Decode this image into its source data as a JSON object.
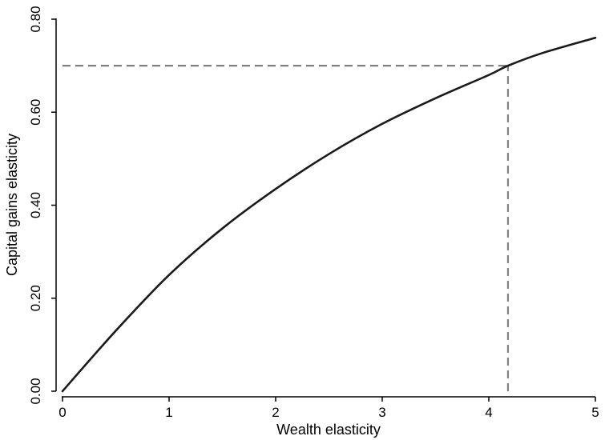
{
  "chart_data": {
    "type": "line",
    "xlabel": "Wealth elasticity",
    "ylabel": "Capital gains elasticity",
    "xlim": [
      0,
      5
    ],
    "ylim": [
      0,
      0.8
    ],
    "x_ticks": [
      "0",
      "1",
      "2",
      "3",
      "4",
      "5"
    ],
    "y_ticks": [
      "0.00",
      "0.20",
      "0.40",
      "0.60",
      "0.80"
    ],
    "grid": false,
    "legend": "none",
    "series": [
      {
        "color": "#1a1a1a",
        "x": [
          0,
          0.5,
          1,
          1.5,
          2,
          2.5,
          3,
          3.5,
          4,
          4.18,
          4.5,
          5
        ],
        "y": [
          0,
          0.13,
          0.25,
          0.35,
          0.435,
          0.51,
          0.575,
          0.63,
          0.68,
          0.7,
          0.727,
          0.76
        ]
      }
    ],
    "reference_lines": [
      {
        "type": "horizontal",
        "value": 0.7,
        "from_x": 0,
        "to_x": 4.18,
        "style": "dashed",
        "color": "#808080"
      },
      {
        "type": "vertical",
        "value": 4.18,
        "from_y": 0,
        "to_y": 0.7,
        "style": "dashed",
        "color": "#808080"
      }
    ]
  }
}
